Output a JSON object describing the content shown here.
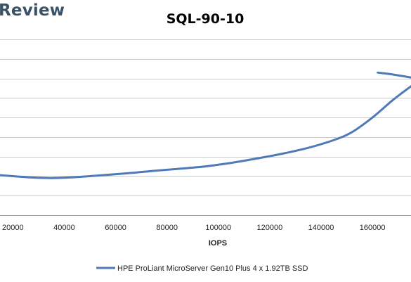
{
  "brand": {
    "text": "Review"
  },
  "chart_data": {
    "type": "line",
    "title": "SQL-90-10",
    "xlabel": "IOPS",
    "ylabel": "",
    "xlim": [
      15000,
      175000
    ],
    "ylim": [
      0,
      9
    ],
    "x_ticks": [
      20000,
      40000,
      60000,
      80000,
      100000,
      120000,
      140000,
      160000
    ],
    "y_ticks": [
      0,
      1,
      2,
      3,
      4,
      5,
      6,
      7,
      8,
      9
    ],
    "grid": true,
    "legend": "bottom",
    "series": [
      {
        "name": "HPE ProLiant MicroServer Gen10 Plus 4 x 1.92TB SSD",
        "color": "#4e7ab7",
        "x": [
          15000,
          25000,
          35000,
          45000,
          55000,
          65000,
          75000,
          85000,
          95000,
          105000,
          115000,
          125000,
          135000,
          145000,
          152000,
          160000,
          168000,
          175000
        ],
        "y": [
          2.05,
          1.95,
          1.9,
          1.95,
          2.05,
          2.15,
          2.27,
          2.38,
          2.5,
          2.68,
          2.9,
          3.15,
          3.45,
          3.85,
          4.25,
          5.0,
          5.9,
          6.6
        ]
      },
      {
        "name": "",
        "color": "#4e7ab7",
        "x": [
          162000,
          168000,
          175000
        ],
        "y": [
          7.3,
          7.2,
          7.05
        ]
      }
    ]
  }
}
